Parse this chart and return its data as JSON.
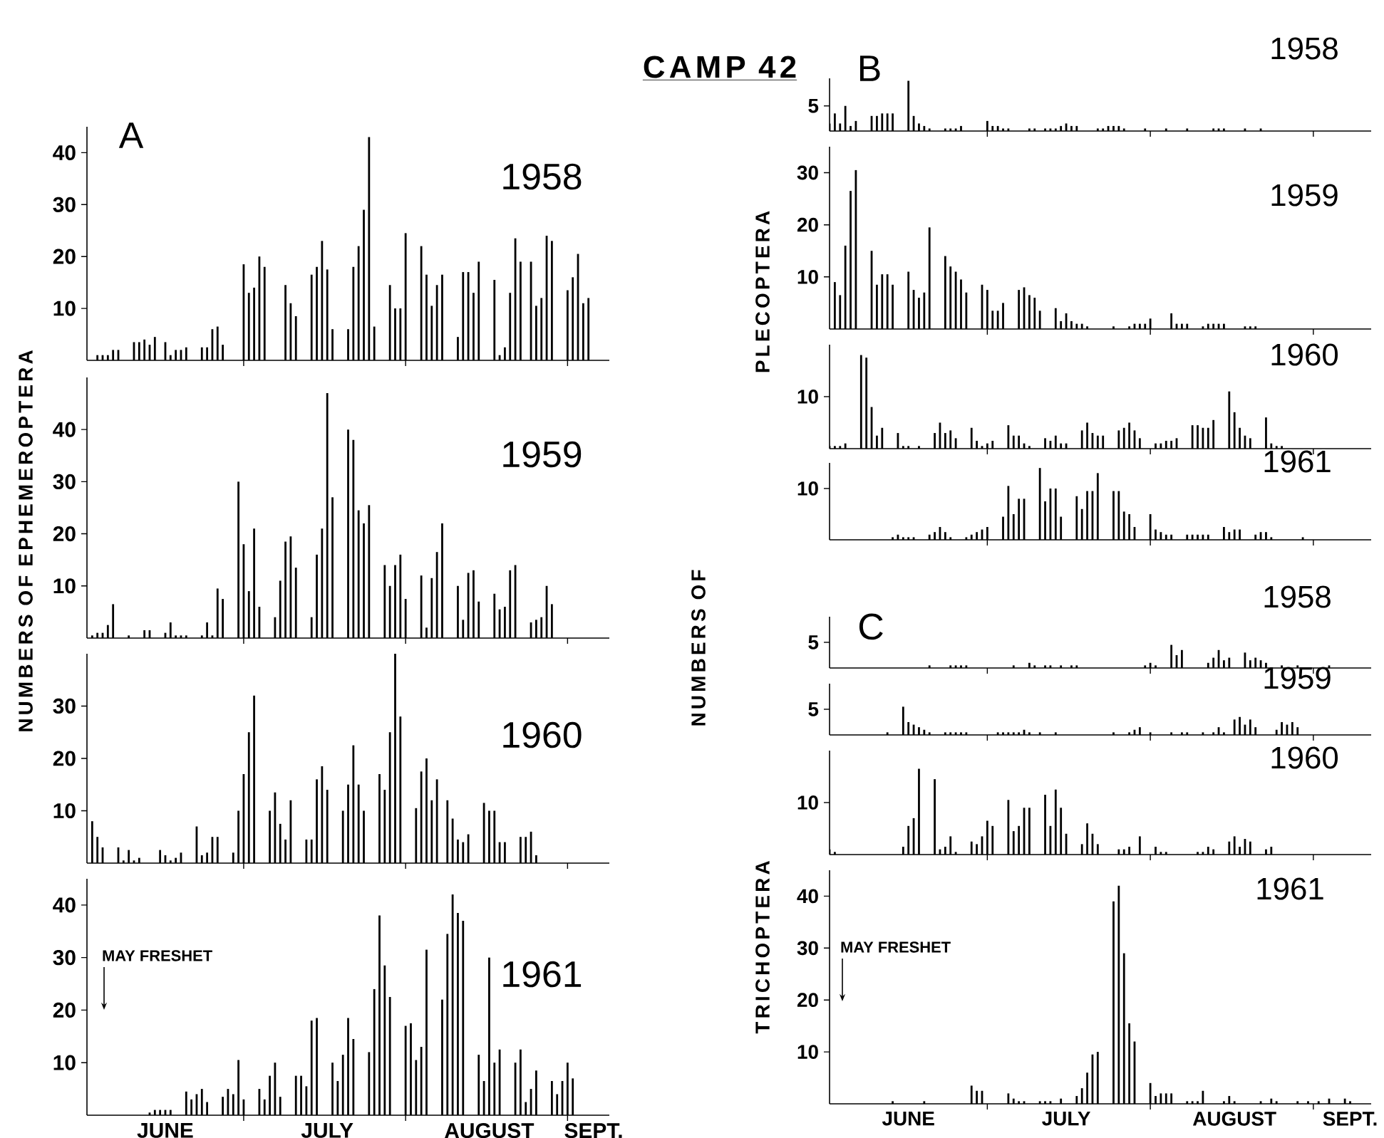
{
  "chart_data": [
    {
      "type": "bar",
      "title": "1958",
      "annotations": [
        "CAMP 42",
        "A"
      ],
      "color": "#000000",
      "xlim": [
        "--06-01",
        "--09-09"
      ],
      "ylim": [
        0,
        45
      ],
      "yticks": [
        10,
        20,
        30,
        40
      ],
      "tick_labels": "y",
      "xticks": [
        {
          "value": "--07-01",
          "label": null
        },
        {
          "value": "--08-01",
          "label": null
        },
        {
          "value": "--09-01",
          "label": null
        }
      ],
      "x": [
        "--06-03",
        "--06-04",
        "--06-05",
        "--06-06",
        "--06-07",
        "--06-10",
        "--06-11",
        "--06-12",
        "--06-13",
        "--06-14",
        "--06-16",
        "--06-17",
        "--06-18",
        "--06-19",
        "--06-20",
        "--06-23",
        "--06-24",
        "--06-25",
        "--06-26",
        "--06-27",
        "--07-01",
        "--07-02",
        "--07-03",
        "--07-04",
        "--07-05",
        "--07-09",
        "--07-10",
        "--07-11",
        "--07-14",
        "--07-15",
        "--07-16",
        "--07-17",
        "--07-18",
        "--07-21",
        "--07-22",
        "--07-23",
        "--07-24",
        "--07-25",
        "--07-26",
        "--07-29",
        "--07-30",
        "--07-31",
        "--08-01",
        "--08-04",
        "--08-05",
        "--08-06",
        "--08-07",
        "--08-08",
        "--08-11",
        "--08-12",
        "--08-13",
        "--08-14",
        "--08-15",
        "--08-18",
        "--08-19",
        "--08-20",
        "--08-21",
        "--08-22",
        "--08-23",
        "--08-25",
        "--08-26",
        "--08-27",
        "--08-28",
        "--08-29",
        "--09-01",
        "--09-02",
        "--09-03",
        "--09-04",
        "--09-05"
      ],
      "values": [
        1,
        1,
        1,
        2,
        2,
        3.5,
        3.5,
        4,
        3,
        4.5,
        3.5,
        1,
        2,
        2,
        2.5,
        2.5,
        2.5,
        6,
        6.5,
        3,
        18.5,
        13,
        14,
        20,
        18,
        14.5,
        11,
        8.5,
        16.5,
        18,
        23,
        17.5,
        6,
        6,
        18,
        22,
        29,
        43,
        6.5,
        14.5,
        10,
        10,
        24.5,
        22,
        16.5,
        10.5,
        14.5,
        16.5,
        4.5,
        17,
        17,
        13,
        19,
        15.5,
        1,
        2.5,
        13,
        23.5,
        19,
        19,
        10.5,
        12,
        24,
        23,
        13.5,
        16,
        20.5,
        11,
        12
      ]
    },
    {
      "type": "bar",
      "title": "1959",
      "ylabel": "NUMBERS OF EPHEMEROPTERA",
      "color": "#000000",
      "xlim": [
        "--06-01",
        "--09-09"
      ],
      "ylim": [
        0,
        50
      ],
      "yticks": [
        10,
        20,
        30,
        40
      ],
      "tick_labels": "y",
      "xticks": [
        {
          "value": "--07-01",
          "label": null
        },
        {
          "value": "--08-01",
          "label": null
        },
        {
          "value": "--09-01",
          "label": null
        }
      ],
      "x": [
        "--06-02",
        "--06-03",
        "--06-04",
        "--06-05",
        "--06-06",
        "--06-09",
        "--06-12",
        "--06-13",
        "--06-16",
        "--06-17",
        "--06-18",
        "--06-19",
        "--06-20",
        "--06-23",
        "--06-24",
        "--06-25",
        "--06-26",
        "--06-27",
        "--06-30",
        "--07-01",
        "--07-02",
        "--07-03",
        "--07-04",
        "--07-07",
        "--07-08",
        "--07-09",
        "--07-10",
        "--07-11",
        "--07-14",
        "--07-15",
        "--07-16",
        "--07-17",
        "--07-18",
        "--07-21",
        "--07-22",
        "--07-23",
        "--07-24",
        "--07-25",
        "--07-28",
        "--07-29",
        "--07-30",
        "--07-31",
        "--08-01",
        "--08-04",
        "--08-05",
        "--08-06",
        "--08-07",
        "--08-08",
        "--08-11",
        "--08-12",
        "--08-13",
        "--08-14",
        "--08-15",
        "--08-18",
        "--08-19",
        "--08-20",
        "--08-21",
        "--08-22",
        "--08-25",
        "--08-26",
        "--08-27",
        "--08-28",
        "--08-29"
      ],
      "values": [
        0.5,
        1,
        1,
        2.5,
        6.5,
        0.5,
        1.5,
        1.5,
        1,
        3,
        0.5,
        0.5,
        0.5,
        0.5,
        3,
        0.5,
        9.5,
        7.5,
        30,
        18,
        9,
        21,
        6,
        4,
        11,
        18.5,
        19.5,
        13.5,
        4,
        16,
        21,
        47,
        27,
        40,
        38,
        24.5,
        22,
        25.5,
        14,
        10,
        14,
        16,
        7.5,
        12,
        2,
        11.5,
        16.5,
        22,
        10,
        3.5,
        12.5,
        13,
        7,
        8.5,
        5.5,
        6,
        13,
        14,
        3,
        3.5,
        4,
        10,
        6.5
      ]
    },
    {
      "type": "bar",
      "title": "1960",
      "color": "#000000",
      "xlim": [
        "--06-01",
        "--09-09"
      ],
      "ylim": [
        0,
        40
      ],
      "yticks": [
        10,
        20,
        30
      ],
      "tick_labels": "y",
      "xticks": [
        {
          "value": "--07-01",
          "label": null
        },
        {
          "value": "--08-01",
          "label": null
        },
        {
          "value": "--09-01",
          "label": null
        }
      ],
      "x": [
        "--06-02",
        "--06-03",
        "--06-04",
        "--06-07",
        "--06-08",
        "--06-09",
        "--06-10",
        "--06-11",
        "--06-15",
        "--06-16",
        "--06-17",
        "--06-18",
        "--06-19",
        "--06-22",
        "--06-23",
        "--06-24",
        "--06-25",
        "--06-26",
        "--06-29",
        "--06-30",
        "--07-01",
        "--07-02",
        "--07-03",
        "--07-06",
        "--07-07",
        "--07-08",
        "--07-09",
        "--07-10",
        "--07-13",
        "--07-14",
        "--07-15",
        "--07-16",
        "--07-17",
        "--07-20",
        "--07-21",
        "--07-22",
        "--07-23",
        "--07-24",
        "--07-27",
        "--07-28",
        "--07-29",
        "--07-30",
        "--07-31",
        "--08-03",
        "--08-04",
        "--08-05",
        "--08-06",
        "--08-07",
        "--08-09",
        "--08-10",
        "--08-11",
        "--08-12",
        "--08-13",
        "--08-16",
        "--08-17",
        "--08-18",
        "--08-19",
        "--08-20",
        "--08-23",
        "--08-24",
        "--08-25",
        "--08-26"
      ],
      "values": [
        8,
        5,
        3,
        3,
        0.5,
        2.5,
        0.5,
        1,
        2.5,
        1.5,
        0.5,
        1,
        2,
        7,
        1.5,
        2,
        5,
        5,
        2,
        10,
        17,
        25,
        32,
        10,
        13.5,
        7.5,
        4.5,
        12,
        4.5,
        4.5,
        16,
        18.5,
        14,
        10,
        15,
        22.5,
        15,
        10,
        17,
        14,
        25,
        40,
        28,
        10.5,
        17.5,
        20,
        12,
        16,
        12,
        8.5,
        4.5,
        4,
        5.5,
        11.5,
        10,
        10,
        4,
        4,
        5,
        5,
        6,
        1.5
      ]
    },
    {
      "type": "bar",
      "title": "1961",
      "annotations": [
        "MAY FRESHET"
      ],
      "color": "#000000",
      "xlim": [
        "--06-01",
        "--09-09"
      ],
      "ylim": [
        0,
        45
      ],
      "yticks": [
        10,
        20,
        30,
        40
      ],
      "xticks": [
        {
          "value": "--06-16",
          "label": "JUNE"
        },
        {
          "value": "--07-01",
          "label": null
        },
        {
          "value": "--07-17",
          "label": "JULY"
        },
        {
          "value": "--08-01",
          "label": null
        },
        {
          "value": "--08-17",
          "label": "AUGUST"
        },
        {
          "value": "--09-01",
          "label": null
        },
        {
          "value": "--09-06",
          "label": "SEPT."
        }
      ],
      "x": [
        "--06-13",
        "--06-14",
        "--06-15",
        "--06-16",
        "--06-17",
        "--06-20",
        "--06-21",
        "--06-22",
        "--06-23",
        "--06-24",
        "--06-27",
        "--06-28",
        "--06-29",
        "--06-30",
        "--07-01",
        "--07-04",
        "--07-05",
        "--07-06",
        "--07-07",
        "--07-08",
        "--07-11",
        "--07-12",
        "--07-13",
        "--07-14",
        "--07-15",
        "--07-18",
        "--07-19",
        "--07-20",
        "--07-21",
        "--07-22",
        "--07-25",
        "--07-26",
        "--07-27",
        "--07-28",
        "--07-29",
        "--08-01",
        "--08-02",
        "--08-03",
        "--08-04",
        "--08-05",
        "--08-08",
        "--08-09",
        "--08-10",
        "--08-11",
        "--08-12",
        "--08-15",
        "--08-16",
        "--08-17",
        "--08-18",
        "--08-19",
        "--08-22",
        "--08-23",
        "--08-24",
        "--08-25",
        "--08-26",
        "--08-29",
        "--08-30",
        "--08-31",
        "--09-01",
        "--09-02"
      ],
      "values": [
        0.5,
        1,
        1,
        1,
        1,
        4.5,
        3,
        4,
        5,
        2.5,
        3.5,
        5,
        4,
        10.5,
        3,
        5,
        3,
        7.5,
        10,
        3.5,
        7.5,
        7.5,
        5.5,
        18,
        18.5,
        10,
        6.5,
        11.5,
        18.5,
        14.5,
        12,
        24,
        38,
        28.5,
        22.5,
        17,
        17.5,
        10.5,
        13,
        31.5,
        22,
        34.5,
        42,
        38.5,
        37,
        11.5,
        6.5,
        30,
        10,
        12.5,
        10,
        12.5,
        2.5,
        5,
        8.5,
        6.5,
        4,
        6.5,
        10,
        7
      ]
    },
    {
      "type": "bar",
      "title": "1958",
      "annotations": [
        "B"
      ],
      "color": "#000000",
      "xlim": [
        "--06-01",
        "--09-12"
      ],
      "ylim": [
        0,
        10.5
      ],
      "yticks": [
        5
      ],
      "tick_labels": "y",
      "xticks": [
        {
          "value": "--07-01",
          "label": null
        },
        {
          "value": "--08-01",
          "label": null
        },
        {
          "value": "--09-01",
          "label": null
        }
      ],
      "x": [
        "--06-01",
        "--06-02",
        "--06-03",
        "--06-04",
        "--06-05",
        "--06-06",
        "--06-09",
        "--06-10",
        "--06-11",
        "--06-12",
        "--06-13",
        "--06-16",
        "--06-17",
        "--06-18",
        "--06-19",
        "--06-20",
        "--06-23",
        "--06-24",
        "--06-25",
        "--06-26",
        "--07-01",
        "--07-02",
        "--07-03",
        "--07-04",
        "--07-05",
        "--07-09",
        "--07-10",
        "--07-12",
        "--07-13",
        "--07-14",
        "--07-15",
        "--07-16",
        "--07-17",
        "--07-18",
        "--07-22",
        "--07-23",
        "--07-24",
        "--07-25",
        "--07-26",
        "--07-27",
        "--07-31",
        "--08-04",
        "--08-08",
        "--08-13",
        "--08-14",
        "--08-15",
        "--08-19",
        "--08-22"
      ],
      "values": [
        1.5,
        3.5,
        1.5,
        5,
        1,
        2,
        3,
        3,
        3.5,
        3.5,
        3.5,
        10,
        3,
        1.5,
        1,
        0.5,
        0.5,
        0.5,
        0.5,
        1,
        2,
        1,
        1,
        0.5,
        0.5,
        0.5,
        0.5,
        0.5,
        0.5,
        0.5,
        1,
        1.5,
        1,
        1,
        0.5,
        0.5,
        1,
        1,
        1,
        0.5,
        0.5,
        0.5,
        0.5,
        0.5,
        0.5,
        0.5,
        0.5,
        0.5
      ]
    },
    {
      "type": "bar",
      "title": "1959",
      "ylabel": "PLECOPTERA",
      "color": "#000000",
      "xlim": [
        "--06-01",
        "--09-12"
      ],
      "ylim": [
        0,
        35
      ],
      "yticks": [
        10,
        20,
        30
      ],
      "tick_labels": "y",
      "xticks": [
        {
          "value": "--07-01",
          "label": null
        },
        {
          "value": "--08-01",
          "label": null
        },
        {
          "value": "--09-01",
          "label": null
        }
      ],
      "x": [
        "--06-02",
        "--06-03",
        "--06-04",
        "--06-05",
        "--06-06",
        "--06-09",
        "--06-10",
        "--06-11",
        "--06-12",
        "--06-13",
        "--06-16",
        "--06-17",
        "--06-18",
        "--06-19",
        "--06-20",
        "--06-23",
        "--06-24",
        "--06-25",
        "--06-26",
        "--06-27",
        "--06-30",
        "--07-01",
        "--07-02",
        "--07-03",
        "--07-04",
        "--07-07",
        "--07-08",
        "--07-09",
        "--07-10",
        "--07-11",
        "--07-14",
        "--07-15",
        "--07-16",
        "--07-17",
        "--07-18",
        "--07-19",
        "--07-20",
        "--07-25",
        "--07-28",
        "--07-29",
        "--07-30",
        "--07-31",
        "--08-01",
        "--08-05",
        "--08-06",
        "--08-07",
        "--08-08",
        "--08-11",
        "--08-12",
        "--08-13",
        "--08-14",
        "--08-15",
        "--08-19",
        "--08-20",
        "--08-21"
      ],
      "values": [
        9,
        6.5,
        16,
        26.5,
        30.5,
        15,
        8.5,
        10.5,
        10.5,
        8.5,
        11,
        7.5,
        6,
        7,
        19.5,
        14,
        12,
        11,
        9.5,
        7,
        8.5,
        7.5,
        3.5,
        3.5,
        5,
        7.5,
        8,
        6.5,
        6,
        3.5,
        4,
        1.5,
        3,
        1.5,
        1,
        1,
        0.5,
        0.5,
        0.5,
        1,
        1,
        1,
        2,
        3,
        1,
        1,
        1,
        0.5,
        1,
        1,
        1,
        1,
        0.5,
        0.5,
        0.5
      ]
    },
    {
      "type": "bar",
      "title": "1960",
      "color": "#000000",
      "xlim": [
        "--06-01",
        "--09-12"
      ],
      "ylim": [
        0,
        20
      ],
      "yticks": [
        10
      ],
      "tick_labels": "y",
      "xticks": [
        {
          "value": "--07-01",
          "label": null
        },
        {
          "value": "--08-01",
          "label": null
        },
        {
          "value": "--09-01",
          "label": null
        }
      ],
      "x": [
        "--06-01",
        "--06-02",
        "--06-03",
        "--06-04",
        "--06-07",
        "--06-08",
        "--06-09",
        "--06-10",
        "--06-11",
        "--06-14",
        "--06-15",
        "--06-16",
        "--06-18",
        "--06-21",
        "--06-22",
        "--06-23",
        "--06-24",
        "--06-25",
        "--06-28",
        "--06-29",
        "--06-30",
        "--07-01",
        "--07-02",
        "--07-05",
        "--07-06",
        "--07-07",
        "--07-08",
        "--07-09",
        "--07-12",
        "--07-13",
        "--07-14",
        "--07-15",
        "--07-16",
        "--07-19",
        "--07-20",
        "--07-21",
        "--07-22",
        "--07-23",
        "--07-26",
        "--07-27",
        "--07-28",
        "--07-29",
        "--07-30",
        "--08-02",
        "--08-03",
        "--08-04",
        "--08-05",
        "--08-06",
        "--08-09",
        "--08-10",
        "--08-11",
        "--08-12",
        "--08-13",
        "--08-16",
        "--08-17",
        "--08-18",
        "--08-19",
        "--08-20",
        "--08-23",
        "--08-24",
        "--08-25",
        "--08-26"
      ],
      "values": [
        0.5,
        0.5,
        0.5,
        1,
        18,
        17.5,
        8,
        2.5,
        4,
        3,
        0.5,
        0.5,
        0.5,
        3,
        5,
        3,
        3.5,
        2,
        4,
        1.5,
        0.5,
        1,
        1.5,
        4.5,
        2.5,
        2.5,
        1,
        0.5,
        2,
        1.5,
        2.5,
        1,
        1,
        3.5,
        5,
        3,
        2.5,
        2.5,
        3.5,
        4,
        5,
        3.5,
        2,
        1,
        1,
        1.5,
        1.5,
        2,
        4.5,
        4.5,
        4,
        4,
        5.5,
        11,
        7,
        4,
        2.5,
        2,
        6,
        1,
        0.5,
        0.5
      ]
    },
    {
      "type": "bar",
      "title": "1961",
      "ylabel": "NUMBERS OF",
      "color": "#000000",
      "xlim": [
        "--06-01",
        "--09-12"
      ],
      "ylim": [
        0,
        15
      ],
      "yticks": [
        10
      ],
      "tick_labels": "y",
      "xticks": [
        {
          "value": "--07-01",
          "label": null
        },
        {
          "value": "--08-01",
          "label": null
        },
        {
          "value": "--09-01",
          "label": null
        }
      ],
      "x": [
        "--06-13",
        "--06-14",
        "--06-15",
        "--06-16",
        "--06-17",
        "--06-20",
        "--06-21",
        "--06-22",
        "--06-23",
        "--06-24",
        "--06-27",
        "--06-28",
        "--06-29",
        "--06-30",
        "--07-01",
        "--07-04",
        "--07-05",
        "--07-06",
        "--07-07",
        "--07-08",
        "--07-11",
        "--07-12",
        "--07-13",
        "--07-14",
        "--07-15",
        "--07-18",
        "--07-19",
        "--07-20",
        "--07-21",
        "--07-22",
        "--07-25",
        "--07-26",
        "--07-27",
        "--07-28",
        "--07-29",
        "--08-01",
        "--08-02",
        "--08-03",
        "--08-04",
        "--08-05",
        "--08-08",
        "--08-09",
        "--08-10",
        "--08-11",
        "--08-12",
        "--08-15",
        "--08-16",
        "--08-17",
        "--08-18",
        "--08-21",
        "--08-22",
        "--08-23",
        "--08-24",
        "--08-30"
      ],
      "values": [
        0.5,
        1,
        0.5,
        0.5,
        0.5,
        1,
        1.5,
        2.5,
        1.5,
        0.5,
        0.5,
        1,
        1.5,
        2,
        2.5,
        4.5,
        10.5,
        5,
        8,
        8,
        14,
        7.5,
        10,
        10,
        4.5,
        8.5,
        6,
        9.5,
        9.5,
        13,
        9.5,
        9.5,
        5.5,
        5,
        2.5,
        5,
        2,
        1.5,
        1,
        1,
        1,
        1,
        1,
        1,
        1,
        2.5,
        1.5,
        2,
        2,
        1,
        1.5,
        1.5,
        0.5,
        0.5
      ]
    },
    {
      "type": "bar",
      "title": "1958",
      "annotations": [
        "C"
      ],
      "color": "#000000",
      "xlim": [
        "--06-01",
        "--09-12"
      ],
      "ylim": [
        0,
        10
      ],
      "yticks": [
        5
      ],
      "tick_labels": "y",
      "xticks": [
        {
          "value": "--07-01",
          "label": null
        },
        {
          "value": "--08-01",
          "label": null
        },
        {
          "value": "--09-01",
          "label": null
        }
      ],
      "x": [
        "--06-20",
        "--06-24",
        "--06-25",
        "--06-26",
        "--06-27",
        "--07-06",
        "--07-09",
        "--07-10",
        "--07-12",
        "--07-13",
        "--07-15",
        "--07-17",
        "--07-18",
        "--07-31",
        "--08-01",
        "--08-02",
        "--08-05",
        "--08-06",
        "--08-07",
        "--08-12",
        "--08-13",
        "--08-14",
        "--08-15",
        "--08-16",
        "--08-19",
        "--08-20",
        "--08-21",
        "--08-22",
        "--08-23",
        "--08-26",
        "--08-29",
        "--09-04"
      ],
      "values": [
        0.5,
        0.5,
        0.5,
        0.5,
        0.5,
        0.5,
        1,
        0.5,
        0.5,
        0.5,
        0.5,
        0.5,
        0.5,
        0.5,
        1,
        0.5,
        4.5,
        2.5,
        3.5,
        1,
        2,
        3.5,
        1.5,
        2,
        3,
        1.5,
        2,
        1.5,
        1,
        0.5,
        0.5,
        0.5
      ]
    },
    {
      "type": "bar",
      "title": "1959",
      "color": "#000000",
      "xlim": [
        "--06-01",
        "--09-12"
      ],
      "ylim": [
        0,
        10
      ],
      "yticks": [
        5
      ],
      "tick_labels": "y",
      "xticks": [
        {
          "value": "--07-01",
          "label": null
        },
        {
          "value": "--08-01",
          "label": null
        },
        {
          "value": "--09-01",
          "label": null
        }
      ],
      "x": [
        "--06-12",
        "--06-15",
        "--06-16",
        "--06-17",
        "--06-18",
        "--06-19",
        "--06-20",
        "--06-23",
        "--06-24",
        "--06-25",
        "--06-26",
        "--06-27",
        "--07-03",
        "--07-04",
        "--07-05",
        "--07-06",
        "--07-07",
        "--07-08",
        "--07-09",
        "--07-11",
        "--07-14",
        "--07-25",
        "--07-28",
        "--07-29",
        "--07-30",
        "--08-01",
        "--08-05",
        "--08-07",
        "--08-08",
        "--08-11",
        "--08-13",
        "--08-14",
        "--08-15",
        "--08-17",
        "--08-18",
        "--08-19",
        "--08-20",
        "--08-21",
        "--08-25",
        "--08-26",
        "--08-27",
        "--08-28",
        "--08-29"
      ],
      "values": [
        0.5,
        5.5,
        2.5,
        2,
        1.5,
        1,
        0.5,
        0.5,
        0.5,
        0.5,
        0.5,
        0.5,
        0.5,
        0.5,
        0.5,
        0.5,
        0.5,
        1,
        0.5,
        0.5,
        0.5,
        0.5,
        0.5,
        1,
        1.5,
        0.5,
        0.5,
        0.5,
        0.5,
        0.5,
        0.5,
        1.5,
        0.5,
        3,
        3.5,
        2,
        3,
        1.5,
        1,
        2.5,
        2,
        2.5,
        1.5
      ]
    },
    {
      "type": "bar",
      "title": "1960",
      "color": "#000000",
      "xlim": [
        "--06-01",
        "--09-12"
      ],
      "ylim": [
        0,
        20
      ],
      "yticks": [
        10
      ],
      "tick_labels": "y",
      "xticks": [
        {
          "value": "--07-01",
          "label": null
        },
        {
          "value": "--08-01",
          "label": null
        },
        {
          "value": "--09-01",
          "label": null
        }
      ],
      "x": [
        "--06-01",
        "--06-02",
        "--06-15",
        "--06-16",
        "--06-17",
        "--06-18",
        "--06-21",
        "--06-22",
        "--06-23",
        "--06-24",
        "--06-25",
        "--06-28",
        "--06-29",
        "--06-30",
        "--07-01",
        "--07-02",
        "--07-05",
        "--07-06",
        "--07-07",
        "--07-08",
        "--07-09",
        "--07-12",
        "--07-13",
        "--07-14",
        "--07-15",
        "--07-16",
        "--07-19",
        "--07-20",
        "--07-21",
        "--07-22",
        "--07-26",
        "--07-27",
        "--07-28",
        "--07-30",
        "--08-02",
        "--08-03",
        "--08-04",
        "--08-10",
        "--08-11",
        "--08-12",
        "--08-13",
        "--08-16",
        "--08-17",
        "--08-18",
        "--08-19",
        "--08-20",
        "--08-23",
        "--08-24"
      ],
      "values": [
        1,
        0.5,
        1.5,
        5.5,
        7,
        16.5,
        14.5,
        1,
        1.5,
        3.5,
        0.5,
        2.5,
        2,
        3.5,
        6.5,
        5.5,
        10.5,
        4.5,
        5.5,
        9,
        9,
        11.5,
        5.5,
        12.5,
        9,
        4,
        2,
        6,
        4,
        2,
        1,
        1,
        1.5,
        3.5,
        1.5,
        0.5,
        0.5,
        0.5,
        0.5,
        1.5,
        1,
        2.5,
        3.5,
        1.5,
        3,
        2.5,
        1,
        1.5
      ]
    },
    {
      "type": "bar",
      "title": "1961",
      "ylabel": "TRICHOPTERA",
      "annotations": [
        "MAY FRESHET"
      ],
      "color": "#000000",
      "xlim": [
        "--06-01",
        "--09-12"
      ],
      "ylim": [
        0,
        45
      ],
      "yticks": [
        10,
        20,
        30,
        40
      ],
      "xticks": [
        {
          "value": "--06-16",
          "label": "JUNE"
        },
        {
          "value": "--07-01",
          "label": null
        },
        {
          "value": "--07-16",
          "label": "JULY"
        },
        {
          "value": "--08-01",
          "label": null
        },
        {
          "value": "--08-17",
          "label": "AUGUST"
        },
        {
          "value": "--09-01",
          "label": null
        },
        {
          "value": "--09-08",
          "label": "SEPT."
        }
      ],
      "x": [
        "--06-13",
        "--06-19",
        "--06-28",
        "--06-29",
        "--06-30",
        "--07-05",
        "--07-06",
        "--07-07",
        "--07-08",
        "--07-11",
        "--07-12",
        "--07-13",
        "--07-15",
        "--07-18",
        "--07-19",
        "--07-20",
        "--07-21",
        "--07-22",
        "--07-25",
        "--07-26",
        "--07-27",
        "--07-28",
        "--07-29",
        "--08-01",
        "--08-02",
        "--08-03",
        "--08-04",
        "--08-05",
        "--08-08",
        "--08-09",
        "--08-10",
        "--08-11",
        "--08-15",
        "--08-16",
        "--08-17",
        "--08-22",
        "--08-24",
        "--08-25",
        "--08-29",
        "--08-31",
        "--09-02",
        "--09-04",
        "--09-07",
        "--09-08"
      ],
      "values": [
        0.5,
        0.5,
        3.5,
        2.5,
        2.5,
        2,
        1,
        0.5,
        0.5,
        0.5,
        0.5,
        0.5,
        1,
        1.5,
        3,
        6,
        9.5,
        10,
        39,
        42,
        29,
        15.5,
        12,
        4,
        1.5,
        2,
        2,
        2,
        0.5,
        0.5,
        0.5,
        2.5,
        0.5,
        1.5,
        0.5,
        0.5,
        1,
        0.5,
        0.5,
        0.5,
        0.5,
        1,
        1,
        0.5
      ]
    }
  ]
}
